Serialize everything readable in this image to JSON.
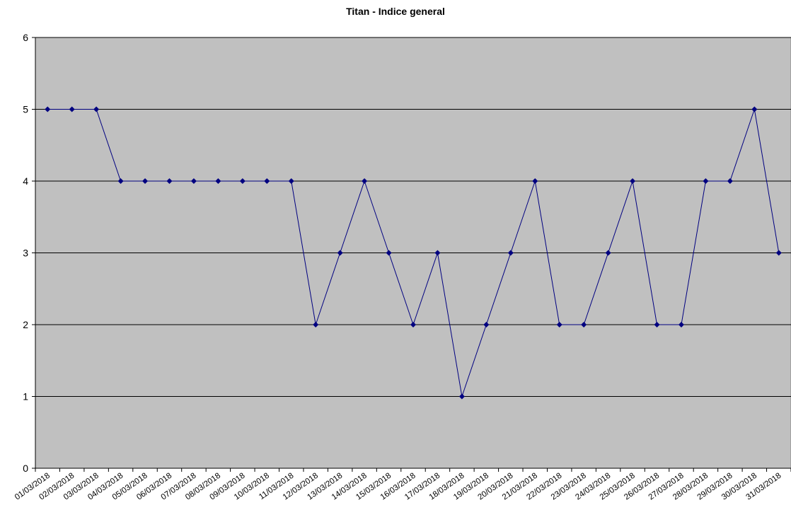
{
  "chart_data": {
    "type": "line",
    "title": "Titan - Indice general",
    "xlabel": "",
    "ylabel": "",
    "ylim": [
      0,
      6
    ],
    "yticks": [
      "0",
      "1",
      "2",
      "3",
      "4",
      "5",
      "6"
    ],
    "grid": true,
    "legend": "none",
    "categories": [
      "01/03/2018",
      "02/03/2018",
      "03/03/2018",
      "04/03/2018",
      "05/03/2018",
      "06/03/2018",
      "07/03/2018",
      "08/03/2018",
      "09/03/2018",
      "10/03/2018",
      "11/03/2018",
      "12/03/2018",
      "13/03/2018",
      "14/03/2018",
      "15/03/2018",
      "16/03/2018",
      "17/03/2018",
      "18/03/2018",
      "19/03/2018",
      "20/03/2018",
      "21/03/2018",
      "22/03/2018",
      "23/03/2018",
      "24/03/2018",
      "25/03/2018",
      "26/03/2018",
      "27/03/2018",
      "28/03/2018",
      "29/03/2018",
      "30/03/2018",
      "31/03/2018"
    ],
    "series": [
      {
        "values": [
          5,
          5,
          5,
          4,
          4,
          4,
          4,
          4,
          4,
          4,
          4,
          2,
          3,
          4,
          3,
          2,
          3,
          1,
          2,
          3,
          4,
          2,
          2,
          3,
          4,
          2,
          2,
          4,
          4,
          5,
          3
        ]
      }
    ],
    "colors": {
      "plot_background": "#c0c0c0",
      "line": "#000080",
      "marker": "#000080",
      "grid": "#000000"
    }
  }
}
